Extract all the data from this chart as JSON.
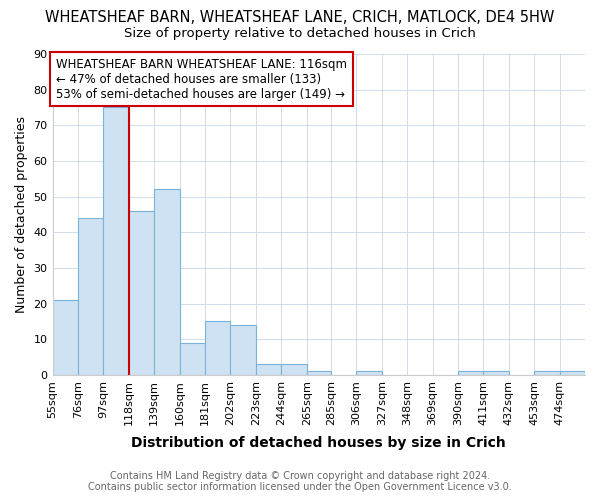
{
  "title": "WHEATSHEAF BARN, WHEATSHEAF LANE, CRICH, MATLOCK, DE4 5HW",
  "subtitle": "Size of property relative to detached houses in Crich",
  "xlabel": "Distribution of detached houses by size in Crich",
  "ylabel": "Number of detached properties",
  "footer1": "Contains HM Land Registry data © Crown copyright and database right 2024.",
  "footer2": "Contains public sector information licensed under the Open Government Licence v3.0.",
  "bin_labels": [
    "55sqm",
    "76sqm",
    "97sqm",
    "118sqm",
    "139sqm",
    "160sqm",
    "181sqm",
    "202sqm",
    "223sqm",
    "244sqm",
    "265sqm",
    "285sqm",
    "306sqm",
    "327sqm",
    "348sqm",
    "369sqm",
    "390sqm",
    "411sqm",
    "432sqm",
    "453sqm",
    "474sqm"
  ],
  "bin_edges": [
    55,
    76,
    97,
    118,
    139,
    160,
    181,
    202,
    223,
    244,
    265,
    285,
    306,
    327,
    348,
    369,
    390,
    411,
    432,
    453,
    474,
    495
  ],
  "values": [
    21,
    44,
    75,
    46,
    52,
    9,
    15,
    14,
    3,
    3,
    1,
    0,
    1,
    0,
    0,
    0,
    1,
    1,
    0,
    1,
    1
  ],
  "bar_color": "#cfe2f3",
  "bar_edge_color": "#7ab3d9",
  "red_line_x": 118,
  "ylim": [
    0,
    90
  ],
  "yticks": [
    0,
    10,
    20,
    30,
    40,
    50,
    60,
    70,
    80,
    90
  ],
  "annotation_text": "WHEATSHEAF BARN WHEATSHEAF LANE: 116sqm\n← 47% of detached houses are smaller (133)\n53% of semi-detached houses are larger (149) →",
  "annotation_box_color": "#ffffff",
  "annotation_box_edge": "#cc0000",
  "title_fontsize": 10.5,
  "subtitle_fontsize": 9.5,
  "xlabel_fontsize": 10,
  "ylabel_fontsize": 9,
  "tick_fontsize": 8,
  "footer_fontsize": 7,
  "annotation_fontsize": 8.5
}
